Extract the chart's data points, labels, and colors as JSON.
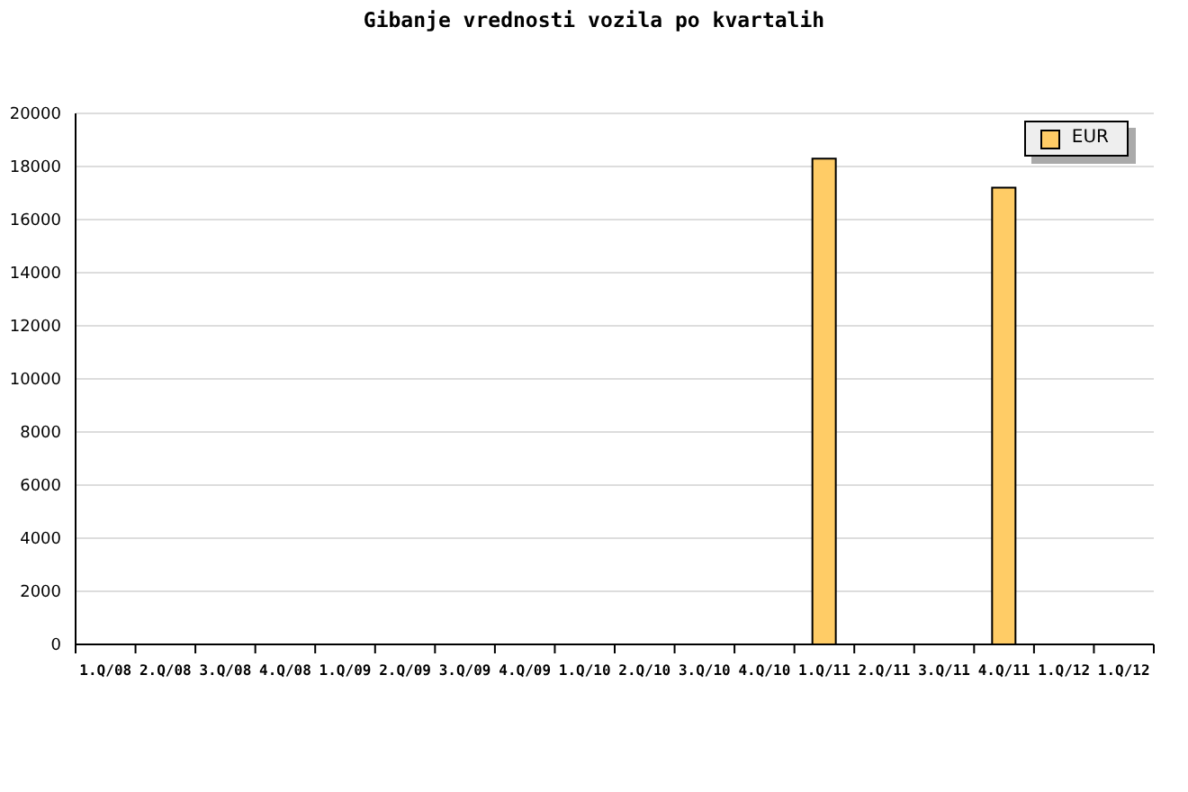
{
  "chart_data": {
    "type": "bar",
    "title": "Gibanje vrednosti vozila po kvartalih",
    "categories": [
      "1.Q/08",
      "2.Q/08",
      "3.Q/08",
      "4.Q/08",
      "1.Q/09",
      "2.Q/09",
      "3.Q/09",
      "4.Q/09",
      "1.Q/10",
      "2.Q/10",
      "3.Q/10",
      "4.Q/10",
      "1.Q/11",
      "2.Q/11",
      "3.Q/11",
      "4.Q/11",
      "1.Q/12",
      "1.Q/12"
    ],
    "series": [
      {
        "name": "EUR",
        "color": "#ffcc66",
        "values": [
          null,
          null,
          null,
          null,
          null,
          null,
          null,
          null,
          null,
          null,
          null,
          null,
          18300,
          null,
          null,
          17200,
          null,
          null
        ]
      }
    ],
    "ylim": [
      0,
      20000
    ],
    "yticks": [
      0,
      2000,
      4000,
      6000,
      8000,
      10000,
      12000,
      14000,
      16000,
      18000,
      20000
    ],
    "grid": "y",
    "legend": "top right"
  }
}
